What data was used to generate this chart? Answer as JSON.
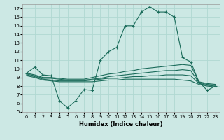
{
  "title": "",
  "xlabel": "Humidex (Indice chaleur)",
  "ylabel": "",
  "background_color": "#cce8e4",
  "grid_color": "#b0d8d2",
  "line_color": "#1a6b5a",
  "xlim": [
    -0.5,
    23.5
  ],
  "ylim": [
    5,
    17.5
  ],
  "yticks": [
    5,
    6,
    7,
    8,
    9,
    10,
    11,
    12,
    13,
    14,
    15,
    16,
    17
  ],
  "xticks": [
    0,
    1,
    2,
    3,
    4,
    5,
    6,
    7,
    8,
    9,
    10,
    11,
    12,
    13,
    14,
    15,
    16,
    17,
    18,
    19,
    20,
    21,
    22,
    23
  ],
  "series": [
    {
      "x": [
        0,
        1,
        2,
        3,
        4,
        5,
        6,
        7,
        8,
        9,
        10,
        11,
        12,
        13,
        14,
        15,
        16,
        17,
        18,
        19,
        20,
        21,
        22,
        23
      ],
      "y": [
        9.5,
        10.2,
        9.3,
        9.2,
        6.3,
        5.5,
        6.3,
        7.6,
        7.5,
        11.0,
        12.0,
        12.5,
        15.0,
        15.0,
        16.6,
        17.2,
        16.6,
        16.6,
        16.0,
        11.3,
        10.8,
        8.5,
        7.5,
        8.0
      ],
      "marker": "+"
    },
    {
      "x": [
        0,
        1,
        2,
        3,
        4,
        5,
        6,
        7,
        8,
        9,
        10,
        11,
        12,
        13,
        14,
        15,
        16,
        17,
        18,
        19,
        20,
        21,
        22,
        23
      ],
      "y": [
        9.5,
        9.3,
        9.0,
        9.0,
        8.9,
        8.8,
        8.8,
        8.8,
        9.0,
        9.2,
        9.4,
        9.5,
        9.7,
        9.8,
        10.0,
        10.1,
        10.2,
        10.3,
        10.4,
        10.5,
        10.4,
        8.5,
        8.3,
        8.2
      ],
      "marker": null
    },
    {
      "x": [
        0,
        1,
        2,
        3,
        4,
        5,
        6,
        7,
        8,
        9,
        10,
        11,
        12,
        13,
        14,
        15,
        16,
        17,
        18,
        19,
        20,
        21,
        22,
        23
      ],
      "y": [
        9.4,
        9.2,
        8.9,
        8.9,
        8.8,
        8.7,
        8.7,
        8.7,
        8.8,
        8.9,
        9.1,
        9.2,
        9.3,
        9.4,
        9.5,
        9.6,
        9.7,
        9.8,
        9.8,
        9.9,
        9.8,
        8.4,
        8.2,
        8.1
      ],
      "marker": null
    },
    {
      "x": [
        0,
        1,
        2,
        3,
        4,
        5,
        6,
        7,
        8,
        9,
        10,
        11,
        12,
        13,
        14,
        15,
        16,
        17,
        18,
        19,
        20,
        21,
        22,
        23
      ],
      "y": [
        9.3,
        9.1,
        8.8,
        8.7,
        8.6,
        8.6,
        8.6,
        8.6,
        8.7,
        8.8,
        8.9,
        8.9,
        9.0,
        9.1,
        9.1,
        9.2,
        9.2,
        9.3,
        9.3,
        9.3,
        9.2,
        8.3,
        8.1,
        8.0
      ],
      "marker": null
    },
    {
      "x": [
        0,
        1,
        2,
        3,
        4,
        5,
        6,
        7,
        8,
        9,
        10,
        11,
        12,
        13,
        14,
        15,
        16,
        17,
        18,
        19,
        20,
        21,
        22,
        23
      ],
      "y": [
        9.2,
        9.0,
        8.7,
        8.6,
        8.5,
        8.5,
        8.5,
        8.5,
        8.5,
        8.6,
        8.7,
        8.7,
        8.8,
        8.8,
        8.8,
        8.8,
        8.8,
        8.8,
        8.8,
        8.7,
        8.6,
        8.2,
        8.0,
        7.9
      ],
      "marker": null
    }
  ]
}
